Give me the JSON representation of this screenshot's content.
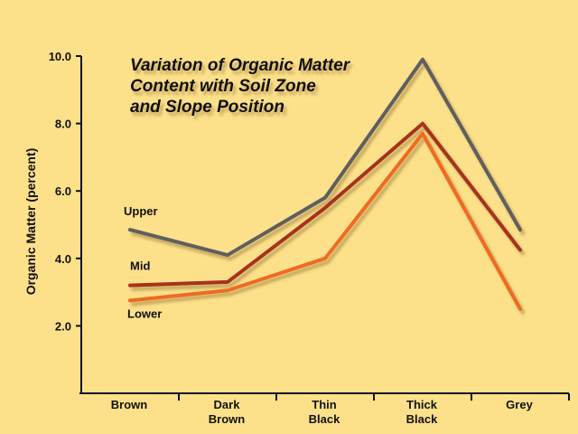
{
  "chart_data": {
    "type": "line",
    "title_lines": [
      "Variation of Organic Matter",
      "Content with Soil Zone",
      "and Slope Position"
    ],
    "ylabel": "Organic Matter (percent)",
    "xlabel": "",
    "ylim": [
      0,
      10
    ],
    "yticks": [
      "2.0",
      "4.0",
      "6.0",
      "8.0",
      "10.0"
    ],
    "ytick_values": [
      2,
      4,
      6,
      8,
      10
    ],
    "categories": [
      [
        "Brown"
      ],
      [
        "Dark",
        "Brown"
      ],
      [
        "Thin",
        "Black"
      ],
      [
        "Thick",
        "Black"
      ],
      [
        "Grey"
      ]
    ],
    "grid": false,
    "legend": "inline labels",
    "series": [
      {
        "name": "Upper",
        "values": [
          4.85,
          4.1,
          5.8,
          9.9,
          4.85
        ],
        "color": "#5f5f5f"
      },
      {
        "name": "Mid",
        "values": [
          3.2,
          3.3,
          5.5,
          8.0,
          4.25
        ],
        "color": "#a8331c"
      },
      {
        "name": "Lower",
        "values": [
          2.75,
          3.05,
          4.0,
          7.7,
          2.5
        ],
        "color": "#f06a20"
      }
    ]
  }
}
